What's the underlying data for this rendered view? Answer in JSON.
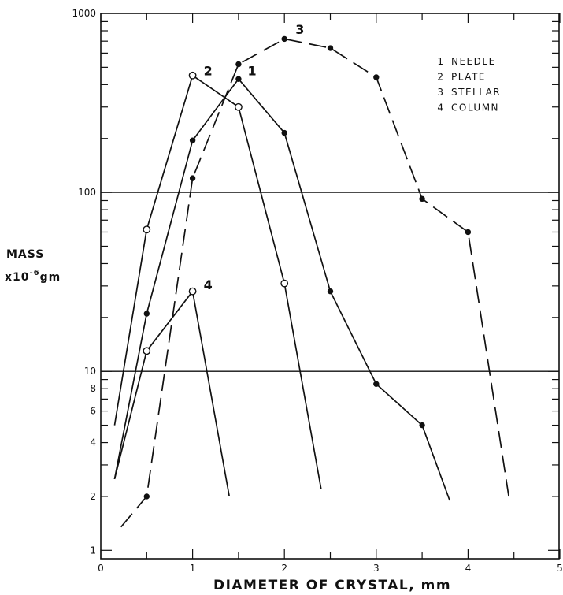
{
  "chart_data": {
    "type": "line",
    "xlabel": "DIAMETER OF CRYSTAL, mm",
    "ylabel": "MASS",
    "ylabel_unit_prefix": "x10",
    "ylabel_unit_exponent": "-6",
    "ylabel_unit_suffix": "gm",
    "x_scale": "linear",
    "y_scale": "log",
    "xlim": [
      0,
      5
    ],
    "ylim": [
      1,
      1000
    ],
    "x_ticks": [
      "0",
      "1",
      "2",
      "3",
      "4",
      "5"
    ],
    "y_ticks": [
      {
        "value": 1,
        "label": "1"
      },
      {
        "value": 2,
        "label": "2"
      },
      {
        "value": 4,
        "label": "4"
      },
      {
        "value": 6,
        "label": "6"
      },
      {
        "value": 8,
        "label": "8"
      },
      {
        "value": 10,
        "label": "10"
      },
      {
        "value": 100,
        "label": "100"
      },
      {
        "value": 1000,
        "label": "1000"
      }
    ],
    "horizontal_gridlines": [
      10,
      100
    ],
    "legend_position": "top-right",
    "series": [
      {
        "name": "NEEDLE",
        "number": "1",
        "line_style": "solid",
        "marker": "filled",
        "x": [
          0.15,
          0.5,
          1.0,
          1.5,
          2.0,
          2.5,
          3.0,
          3.5,
          3.8
        ],
        "y": [
          2.5,
          21,
          195,
          430,
          215,
          28,
          8.5,
          5.0,
          1.9
        ],
        "marked": [
          false,
          true,
          true,
          true,
          true,
          true,
          true,
          true,
          false
        ]
      },
      {
        "name": "PLATE",
        "number": "2",
        "line_style": "solid",
        "marker": "open",
        "x": [
          0.15,
          0.5,
          1.0,
          1.5,
          2.0,
          2.4
        ],
        "y": [
          5,
          62,
          450,
          300,
          31,
          2.2
        ],
        "marked": [
          false,
          true,
          true,
          true,
          true,
          false
        ]
      },
      {
        "name": "STELLAR",
        "number": "3",
        "line_style": "dashed",
        "marker": "filled",
        "x": [
          0.22,
          0.5,
          1.0,
          1.5,
          2.0,
          2.5,
          3.0,
          3.5,
          4.0,
          4.45
        ],
        "y": [
          1.35,
          2.0,
          120,
          520,
          720,
          640,
          440,
          92,
          60,
          1.9
        ],
        "marked": [
          false,
          true,
          true,
          true,
          true,
          true,
          true,
          true,
          true,
          false
        ]
      },
      {
        "name": "COLUMN",
        "number": "4",
        "line_style": "solid",
        "marker": "open",
        "x": [
          0.15,
          0.5,
          1.0,
          1.4
        ],
        "y": [
          2.5,
          13,
          28,
          2.0
        ],
        "marked": [
          false,
          true,
          true,
          false
        ]
      }
    ],
    "curve_labels": [
      {
        "text": "1",
        "x": 1.6,
        "y": 470
      },
      {
        "text": "2",
        "x": 1.12,
        "y": 470
      },
      {
        "text": "3",
        "x": 2.12,
        "y": 800
      },
      {
        "text": "4",
        "x": 1.12,
        "y": 30
      }
    ]
  }
}
